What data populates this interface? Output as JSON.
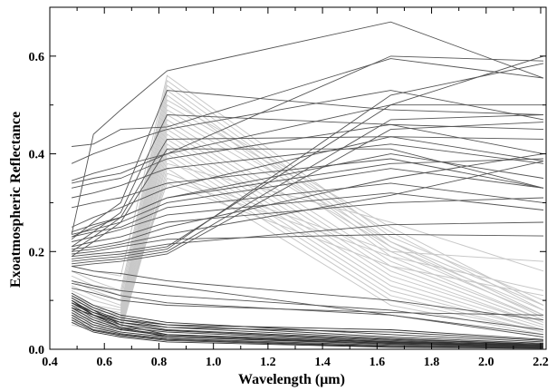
{
  "chart_data": {
    "type": "line",
    "title": "",
    "xlabel": "Wavelength (μm)",
    "ylabel": "Exoatmospheric Reflectance",
    "xlim": [
      0.4,
      2.22
    ],
    "ylim": [
      0,
      0.7
    ],
    "x_ticks": [
      "0.4",
      "0.6",
      "0.8",
      "1.0",
      "1.2",
      "1.4",
      "1.6",
      "1.8",
      "2.0",
      "2.2"
    ],
    "y_ticks": [
      "0.0",
      "0.2",
      "0.4",
      "0.6"
    ],
    "x": [
      0.48,
      0.56,
      0.66,
      0.83,
      1.65,
      2.21
    ],
    "grid": false,
    "colors": {
      "soil": "#555555",
      "vegetation": "#c8c8c8",
      "water": "#333333"
    },
    "series": [
      {
        "group": "soil",
        "values": [
          0.235,
          0.44,
          0.49,
          0.57,
          0.67,
          0.555
        ]
      },
      {
        "group": "soil",
        "values": [
          0.415,
          0.42,
          0.45,
          0.455,
          0.595,
          0.555
        ]
      },
      {
        "group": "soil",
        "values": [
          0.38,
          0.4,
          0.42,
          0.45,
          0.53,
          0.47
        ]
      },
      {
        "group": "soil",
        "values": [
          0.34,
          0.35,
          0.36,
          0.4,
          0.5,
          0.5
        ]
      },
      {
        "group": "soil",
        "values": [
          0.33,
          0.34,
          0.35,
          0.39,
          0.46,
          0.4
        ]
      },
      {
        "group": "soil",
        "values": [
          0.31,
          0.32,
          0.335,
          0.37,
          0.42,
          0.38
        ]
      },
      {
        "group": "soil",
        "values": [
          0.29,
          0.3,
          0.31,
          0.34,
          0.39,
          0.33
        ]
      },
      {
        "group": "soil",
        "values": [
          0.25,
          0.27,
          0.29,
          0.33,
          0.435,
          0.385
        ]
      },
      {
        "group": "soil",
        "values": [
          0.24,
          0.255,
          0.27,
          0.31,
          0.4,
          0.35
        ]
      },
      {
        "group": "soil",
        "values": [
          0.235,
          0.245,
          0.26,
          0.3,
          0.37,
          0.33
        ]
      },
      {
        "group": "soil",
        "values": [
          0.23,
          0.24,
          0.25,
          0.29,
          0.34,
          0.3
        ]
      },
      {
        "group": "soil",
        "values": [
          0.22,
          0.23,
          0.245,
          0.275,
          0.32,
          0.285
        ]
      },
      {
        "group": "soil",
        "values": [
          0.21,
          0.22,
          0.23,
          0.26,
          0.3,
          0.31
        ]
      },
      {
        "group": "soil",
        "values": [
          0.205,
          0.21,
          0.22,
          0.25,
          0.35,
          0.4
        ]
      },
      {
        "group": "soil",
        "values": [
          0.2,
          0.205,
          0.215,
          0.235,
          0.315,
          0.385
        ]
      },
      {
        "group": "soil",
        "values": [
          0.195,
          0.2,
          0.21,
          0.225,
          0.235,
          0.232
        ]
      },
      {
        "group": "soil",
        "values": [
          0.19,
          0.195,
          0.2,
          0.215,
          0.255,
          0.26
        ]
      },
      {
        "group": "soil",
        "values": [
          0.185,
          0.19,
          0.195,
          0.21,
          0.5,
          0.6
        ]
      },
      {
        "group": "soil",
        "values": [
          0.18,
          0.185,
          0.19,
          0.205,
          0.52,
          0.585
        ]
      },
      {
        "group": "soil",
        "values": [
          0.175,
          0.18,
          0.185,
          0.2,
          0.47,
          0.48
        ]
      },
      {
        "group": "soil",
        "values": [
          0.17,
          0.175,
          0.18,
          0.195,
          0.45,
          0.465
        ]
      },
      {
        "group": "soil",
        "values": [
          0.225,
          0.26,
          0.3,
          0.53,
          0.49,
          0.48
        ]
      },
      {
        "group": "soil",
        "values": [
          0.21,
          0.24,
          0.28,
          0.48,
          0.46,
          0.45
        ]
      },
      {
        "group": "soil",
        "values": [
          0.2,
          0.23,
          0.27,
          0.43,
          0.435,
          0.43
        ]
      },
      {
        "group": "soil",
        "values": [
          0.19,
          0.22,
          0.26,
          0.41,
          0.41,
          0.33
        ]
      },
      {
        "group": "soil",
        "values": [
          0.345,
          0.36,
          0.375,
          0.4,
          0.6,
          0.59
        ]
      },
      {
        "group": "soil",
        "values": [
          0.23,
          0.25,
          0.27,
          0.31,
          0.38,
          0.39
        ]
      },
      {
        "group": "soil",
        "values": [
          0.17,
          0.16,
          0.155,
          0.14,
          0.1,
          0.06
        ]
      },
      {
        "group": "soil",
        "values": [
          0.16,
          0.15,
          0.14,
          0.13,
          0.07,
          0.03
        ]
      },
      {
        "group": "soil",
        "values": [
          0.14,
          0.13,
          0.12,
          0.11,
          0.08,
          0.04
        ]
      },
      {
        "group": "soil",
        "values": [
          0.135,
          0.125,
          0.11,
          0.095,
          0.07,
          0.025
        ]
      },
      {
        "group": "soil",
        "values": [
          0.125,
          0.115,
          0.1,
          0.09,
          0.075,
          0.07
        ]
      },
      {
        "group": "vegetation",
        "values": [
          0.17,
          0.16,
          0.15,
          0.56,
          0.23,
          0.1
        ]
      },
      {
        "group": "vegetation",
        "values": [
          0.16,
          0.14,
          0.12,
          0.55,
          0.22,
          0.09
        ]
      },
      {
        "group": "vegetation",
        "values": [
          0.15,
          0.13,
          0.11,
          0.54,
          0.21,
          0.08
        ]
      },
      {
        "group": "vegetation",
        "values": [
          0.14,
          0.12,
          0.1,
          0.53,
          0.2,
          0.07
        ]
      },
      {
        "group": "vegetation",
        "values": [
          0.13,
          0.11,
          0.09,
          0.52,
          0.19,
          0.06
        ]
      },
      {
        "group": "vegetation",
        "values": [
          0.12,
          0.1,
          0.085,
          0.51,
          0.25,
          0.09
        ]
      },
      {
        "group": "vegetation",
        "values": [
          0.11,
          0.09,
          0.08,
          0.5,
          0.24,
          0.08
        ]
      },
      {
        "group": "vegetation",
        "values": [
          0.1,
          0.085,
          0.075,
          0.49,
          0.22,
          0.07
        ]
      },
      {
        "group": "vegetation",
        "values": [
          0.095,
          0.08,
          0.07,
          0.48,
          0.21,
          0.065
        ]
      },
      {
        "group": "vegetation",
        "values": [
          0.09,
          0.075,
          0.065,
          0.47,
          0.18,
          0.06
        ]
      },
      {
        "group": "vegetation",
        "values": [
          0.085,
          0.07,
          0.06,
          0.46,
          0.17,
          0.055
        ]
      },
      {
        "group": "vegetation",
        "values": [
          0.08,
          0.065,
          0.055,
          0.45,
          0.16,
          0.05
        ]
      },
      {
        "group": "vegetation",
        "values": [
          0.075,
          0.06,
          0.05,
          0.44,
          0.15,
          0.05
        ]
      },
      {
        "group": "vegetation",
        "values": [
          0.07,
          0.055,
          0.05,
          0.43,
          0.14,
          0.045
        ]
      },
      {
        "group": "vegetation",
        "values": [
          0.065,
          0.05,
          0.045,
          0.42,
          0.13,
          0.04
        ]
      },
      {
        "group": "vegetation",
        "values": [
          0.06,
          0.05,
          0.04,
          0.41,
          0.12,
          0.04
        ]
      },
      {
        "group": "vegetation",
        "values": [
          0.055,
          0.045,
          0.04,
          0.4,
          0.11,
          0.035
        ]
      },
      {
        "group": "vegetation",
        "values": [
          0.055,
          0.045,
          0.035,
          0.39,
          0.1,
          0.035
        ]
      },
      {
        "group": "vegetation",
        "values": [
          0.05,
          0.04,
          0.035,
          0.37,
          0.09,
          0.03
        ]
      },
      {
        "group": "vegetation",
        "values": [
          0.06,
          0.05,
          0.045,
          0.38,
          0.26,
          0.16
        ]
      },
      {
        "group": "vegetation",
        "values": [
          0.07,
          0.06,
          0.05,
          0.36,
          0.2,
          0.18
        ]
      },
      {
        "group": "vegetation",
        "values": [
          0.08,
          0.07,
          0.06,
          0.35,
          0.19,
          0.12
        ]
      },
      {
        "group": "vegetation",
        "values": [
          0.09,
          0.08,
          0.07,
          0.34,
          0.17,
          0.11
        ]
      },
      {
        "group": "water",
        "values": [
          0.115,
          0.09,
          0.07,
          0.055,
          0.03,
          0.015
        ]
      },
      {
        "group": "water",
        "values": [
          0.11,
          0.085,
          0.065,
          0.05,
          0.025,
          0.012
        ]
      },
      {
        "group": "water",
        "values": [
          0.105,
          0.08,
          0.06,
          0.045,
          0.022,
          0.01
        ]
      },
      {
        "group": "water",
        "values": [
          0.1,
          0.075,
          0.055,
          0.04,
          0.02,
          0.01
        ]
      },
      {
        "group": "water",
        "values": [
          0.095,
          0.07,
          0.05,
          0.038,
          0.018,
          0.008
        ]
      },
      {
        "group": "water",
        "values": [
          0.09,
          0.065,
          0.045,
          0.035,
          0.016,
          0.008
        ]
      },
      {
        "group": "water",
        "values": [
          0.085,
          0.06,
          0.042,
          0.03,
          0.014,
          0.007
        ]
      },
      {
        "group": "water",
        "values": [
          0.08,
          0.055,
          0.04,
          0.028,
          0.012,
          0.006
        ]
      },
      {
        "group": "water",
        "values": [
          0.075,
          0.05,
          0.035,
          0.025,
          0.01,
          0.005
        ]
      },
      {
        "group": "water",
        "values": [
          0.07,
          0.045,
          0.032,
          0.022,
          0.008,
          0.004
        ]
      },
      {
        "group": "water",
        "values": [
          0.065,
          0.04,
          0.03,
          0.02,
          0.006,
          0.003
        ]
      },
      {
        "group": "water",
        "values": [
          0.06,
          0.038,
          0.028,
          0.018,
          0.005,
          0.003
        ]
      },
      {
        "group": "water",
        "values": [
          0.055,
          0.035,
          0.025,
          0.015,
          0.004,
          0.002
        ]
      },
      {
        "group": "water",
        "values": [
          0.095,
          0.075,
          0.06,
          0.05,
          0.04,
          0.02
        ]
      },
      {
        "group": "water",
        "values": [
          0.085,
          0.07,
          0.055,
          0.045,
          0.035,
          0.018
        ]
      },
      {
        "group": "water",
        "values": [
          0.105,
          0.08,
          0.05,
          0.03,
          0.015,
          0.01
        ]
      },
      {
        "group": "water",
        "values": [
          0.1,
          0.07,
          0.045,
          0.025,
          0.012,
          0.008
        ]
      }
    ]
  }
}
